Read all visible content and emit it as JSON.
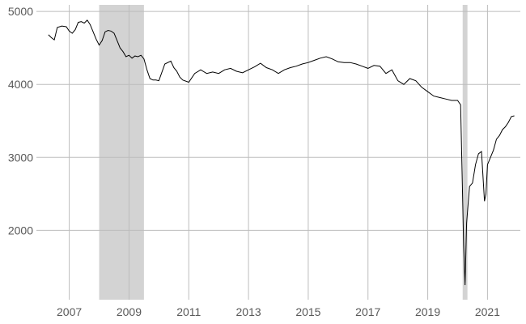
{
  "chart_data": {
    "type": "line",
    "title": "",
    "xlabel": "",
    "ylabel": "",
    "xlim": [
      2005.9,
      2022.1
    ],
    "ylim": [
      1050,
      5090
    ],
    "x_ticks": [
      2007,
      2009,
      2011,
      2013,
      2015,
      2017,
      2019,
      2021
    ],
    "x_tick_labels": [
      "2007",
      "2009",
      "2011",
      "2013",
      "2015",
      "2017",
      "2019",
      "2021"
    ],
    "y_ticks": [
      2000,
      3000,
      4000,
      5000
    ],
    "y_tick_labels": [
      "2000",
      "3000",
      "4000",
      "5000"
    ],
    "grid": true,
    "legend": "none",
    "line_color": "#000000",
    "shade_color": "#d3d3d3",
    "grid_color": "#bdbdbd",
    "shaded_periods": [
      [
        2008.0,
        2009.5
      ],
      [
        2020.17,
        2020.33
      ]
    ],
    "series": [
      {
        "x": [
          2006.3,
          2006.4,
          2006.5,
          2006.6,
          2006.75,
          2006.9,
          2007.0,
          2007.1,
          2007.2,
          2007.3,
          2007.4,
          2007.5,
          2007.6,
          2007.7,
          2007.8,
          2007.9,
          2008.0,
          2008.1,
          2008.2,
          2008.3,
          2008.4,
          2008.5,
          2008.6,
          2008.7,
          2008.8,
          2008.9,
          2009.0,
          2009.1,
          2009.2,
          2009.3,
          2009.4,
          2009.5,
          2009.6,
          2009.7,
          2009.8,
          2009.9,
          2010.0,
          2010.2,
          2010.4,
          2010.5,
          2010.6,
          2010.7,
          2010.8,
          2011.0,
          2011.2,
          2011.4,
          2011.6,
          2011.8,
          2012.0,
          2012.2,
          2012.4,
          2012.6,
          2012.8,
          2013.0,
          2013.2,
          2013.4,
          2013.6,
          2013.8,
          2014.0,
          2014.2,
          2014.4,
          2014.6,
          2014.8,
          2015.0,
          2015.2,
          2015.4,
          2015.6,
          2015.8,
          2016.0,
          2016.2,
          2016.4,
          2016.6,
          2016.8,
          2017.0,
          2017.2,
          2017.4,
          2017.6,
          2017.8,
          2018.0,
          2018.2,
          2018.4,
          2018.6,
          2018.8,
          2019.0,
          2019.2,
          2019.4,
          2019.6,
          2019.8,
          2020.0,
          2020.1,
          2020.15,
          2020.2,
          2020.25,
          2020.3,
          2020.4,
          2020.5,
          2020.6,
          2020.7,
          2020.8,
          2020.9,
          2020.95,
          2021.0,
          2021.1,
          2021.2,
          2021.3,
          2021.4,
          2021.5,
          2021.6,
          2021.7,
          2021.8,
          2021.9
        ],
        "y": [
          4680,
          4640,
          4610,
          4780,
          4800,
          4790,
          4730,
          4700,
          4750,
          4850,
          4860,
          4840,
          4880,
          4820,
          4720,
          4620,
          4540,
          4600,
          4720,
          4740,
          4730,
          4700,
          4600,
          4500,
          4450,
          4380,
          4400,
          4360,
          4390,
          4380,
          4400,
          4350,
          4200,
          4080,
          4060,
          4060,
          4050,
          4280,
          4320,
          4230,
          4180,
          4100,
          4060,
          4030,
          4150,
          4200,
          4150,
          4170,
          4150,
          4200,
          4220,
          4180,
          4160,
          4200,
          4240,
          4290,
          4230,
          4200,
          4150,
          4200,
          4230,
          4250,
          4280,
          4300,
          4330,
          4360,
          4380,
          4350,
          4310,
          4300,
          4300,
          4280,
          4250,
          4220,
          4260,
          4250,
          4150,
          4200,
          4050,
          4000,
          4080,
          4050,
          3960,
          3900,
          3840,
          3820,
          3800,
          3780,
          3780,
          3720,
          2800,
          1800,
          1250,
          2100,
          2600,
          2650,
          2900,
          3050,
          3080,
          2400,
          2500,
          2900,
          3000,
          3100,
          3250,
          3300,
          3380,
          3420,
          3480,
          3560,
          3570
        ]
      }
    ]
  }
}
